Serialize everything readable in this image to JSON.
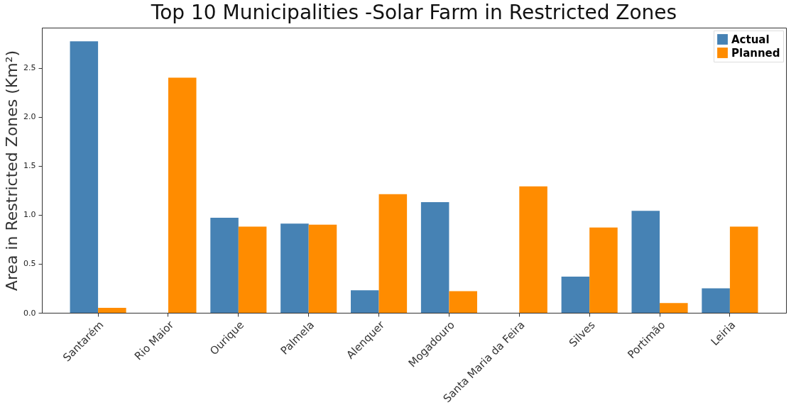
{
  "chart_data": {
    "type": "bar",
    "title": "Top 10 Municipalities -Solar Farm in Restricted Zones",
    "ylabel": "Area in Restricted Zones (Km²)",
    "categories": [
      "Santarém",
      "Rio Maior",
      "Ourique",
      "Palmela",
      "Alenquer",
      "Mogadouro",
      "Santa Maria da Feira",
      "Silves",
      "Portimão",
      "Leiria"
    ],
    "series": [
      {
        "name": "Actual",
        "color": "#4682b4",
        "values": [
          2.77,
          null,
          0.97,
          0.91,
          0.23,
          1.13,
          null,
          0.37,
          1.04,
          0.25
        ]
      },
      {
        "name": "Planned",
        "color": "#ff8c00",
        "values": [
          0.05,
          2.4,
          0.88,
          0.9,
          1.21,
          0.22,
          1.29,
          0.87,
          0.1,
          0.88
        ]
      }
    ],
    "ylim": [
      0,
      2.91
    ],
    "yticks": [
      {
        "value": 0,
        "label": "0.0"
      },
      0.5,
      {
        "value": 1,
        "label": "1.0"
      },
      1.5,
      {
        "value": 2,
        "label": "2.0"
      },
      2.5
    ],
    "grid": false,
    "legend": "top right"
  }
}
